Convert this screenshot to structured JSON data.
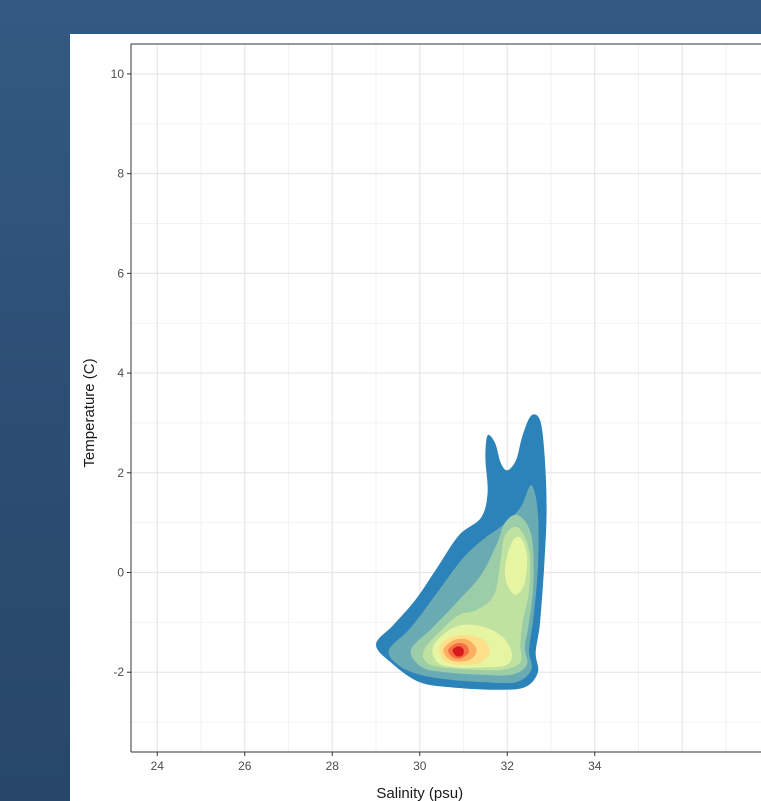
{
  "chart_data": {
    "type": "heatmap",
    "subtype": "2d-density-filled-contour",
    "title": "",
    "xlabel": "Salinity (psu)",
    "ylabel": "Temperature (C)",
    "xlim": [
      23.4,
      37.8
    ],
    "ylim": [
      -3.6,
      10.6
    ],
    "x_ticks": [
      24,
      26,
      28,
      30,
      32,
      34
    ],
    "y_ticks": [
      10,
      8,
      6,
      4,
      2,
      0,
      -2
    ],
    "grid": true,
    "legend": "none",
    "density_peaks": [
      {
        "x": 30.9,
        "y": -1.55,
        "level": "highest"
      },
      {
        "x": 32.2,
        "y": 0.3,
        "level": "secondary"
      }
    ],
    "data_extent": {
      "x": [
        29.0,
        32.9
      ],
      "y": [
        -2.35,
        3.2
      ]
    },
    "contour_colors": [
      "#2b83ba",
      "#6aaab3",
      "#9bcda8",
      "#c0e2a0",
      "#e6f5a2",
      "#fee08b",
      "#fdae61",
      "#f46d43",
      "#d7191c"
    ]
  }
}
